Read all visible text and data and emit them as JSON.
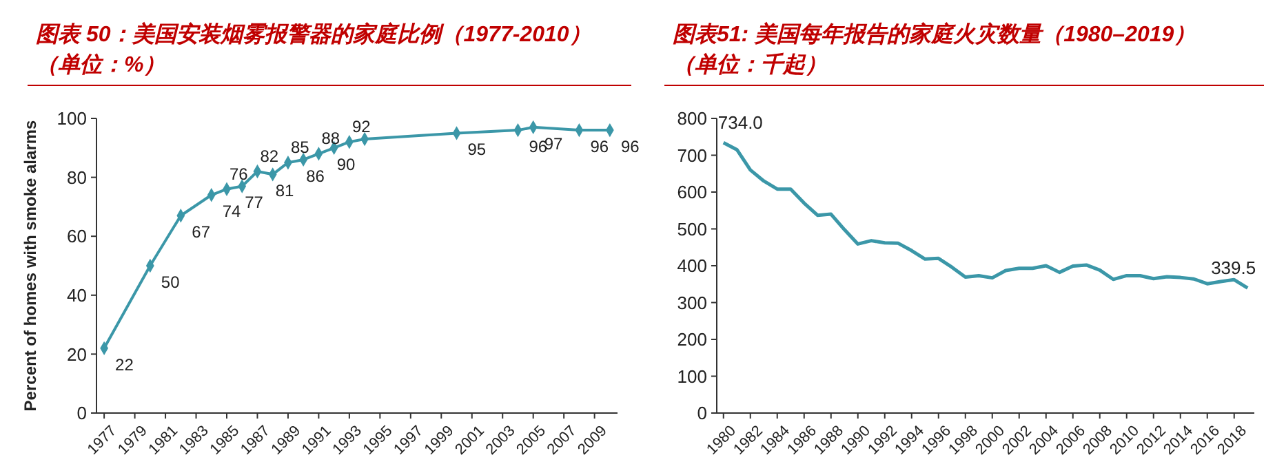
{
  "chart_data": [
    {
      "type": "line",
      "title": "图表 50：美国安装烟雾报警器的家庭比例（1977-2010）（单位：%）",
      "ylabel": "Percent of homes with smoke alarms",
      "color": "#3b97a8",
      "marker": "diamond",
      "x": [
        1977,
        1980,
        1982,
        1984,
        1985,
        1986,
        1987,
        1988,
        1989,
        1990,
        1991,
        1992,
        1993,
        1994,
        2000,
        2004,
        2005,
        2008,
        2010
      ],
      "values": [
        22,
        50,
        67,
        74,
        76,
        77,
        82,
        81,
        85,
        86,
        88,
        90,
        92,
        93,
        95,
        96,
        97,
        96,
        96
      ],
      "value_labels": [
        "22",
        "50",
        "67",
        "74",
        "76",
        "77",
        "82",
        "81",
        "85",
        "86",
        "88",
        "90",
        "92",
        null,
        "95",
        "96",
        "97",
        "96",
        "96"
      ],
      "xlim": [
        1976.5,
        2010.5
      ],
      "xticks": [
        1977,
        1979,
        1981,
        1983,
        1985,
        1987,
        1989,
        1991,
        1993,
        1995,
        1997,
        1999,
        2001,
        2003,
        2005,
        2007,
        2009
      ],
      "ylim": [
        0,
        100
      ],
      "yticks": [
        0,
        20,
        40,
        60,
        80,
        100
      ]
    },
    {
      "type": "line",
      "title": "图表51: 美国每年报告的家庭火灾数量（1980–2019）（单位：千起）",
      "color": "#3b97a8",
      "x": [
        1980,
        1981,
        1982,
        1983,
        1984,
        1985,
        1986,
        1987,
        1988,
        1989,
        1990,
        1991,
        1992,
        1993,
        1994,
        1995,
        1996,
        1997,
        1998,
        1999,
        2000,
        2001,
        2002,
        2003,
        2004,
        2005,
        2006,
        2007,
        2008,
        2009,
        2010,
        2011,
        2012,
        2013,
        2014,
        2015,
        2016,
        2017,
        2018,
        2019
      ],
      "values": [
        734,
        715,
        660,
        630,
        608,
        608,
        570,
        537,
        540,
        498,
        459,
        468,
        462,
        461,
        441,
        418,
        420,
        396,
        369,
        373,
        367,
        387,
        393,
        393,
        400,
        382,
        399,
        402,
        388,
        363,
        373,
        373,
        365,
        370,
        368,
        364,
        351,
        357,
        362,
        339.5
      ],
      "value_labels": [
        "734.0",
        null,
        null,
        null,
        null,
        null,
        null,
        null,
        null,
        null,
        null,
        null,
        null,
        null,
        null,
        null,
        null,
        null,
        null,
        null,
        null,
        null,
        null,
        null,
        null,
        null,
        null,
        null,
        null,
        null,
        null,
        null,
        null,
        null,
        null,
        null,
        null,
        null,
        null,
        "339.5"
      ],
      "xlim": [
        1979.5,
        2019.5
      ],
      "xticks": [
        1980,
        1982,
        1984,
        1986,
        1988,
        1990,
        1992,
        1994,
        1996,
        1998,
        2000,
        2002,
        2004,
        2006,
        2008,
        2010,
        2012,
        2014,
        2016,
        2018
      ],
      "ylim": [
        0,
        800
      ],
      "yticks": [
        0,
        100,
        200,
        300,
        400,
        500,
        600,
        700,
        800
      ]
    }
  ]
}
